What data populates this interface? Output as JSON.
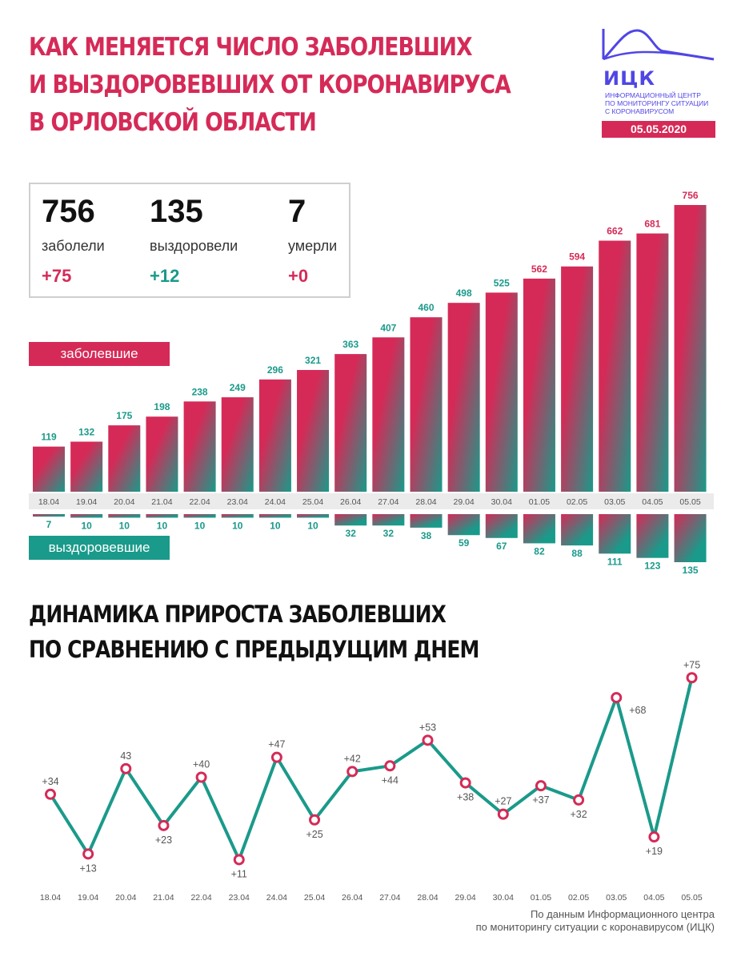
{
  "header": {
    "title_lines": [
      "КАК МЕНЯЕТСЯ ЧИСЛО ЗАБОЛЕВШИХ",
      "И ВЫЗДОРОВЕВШИХ ОТ КОРОНАВИРУСА",
      "В ОРЛОВСКОЙ ОБЛАСТИ"
    ]
  },
  "logo": {
    "abbr": "ИЦК",
    "text_lines": [
      "ИНФОРМАЦИОННЫЙ ЦЕНТР",
      "ПО МОНИТОРИНГУ СИТУАЦИИ",
      "С КОРОНАВИРУСОМ"
    ],
    "date": "05.05.2020"
  },
  "stats": [
    {
      "value": "756",
      "label": "заболели",
      "delta": "+75",
      "color": "#d52a57"
    },
    {
      "value": "135",
      "label": "выздоровели",
      "delta": "+12",
      "color": "#1a9a8a"
    },
    {
      "value": "7",
      "label": "умерли",
      "delta": "+0",
      "color": "#d52a57"
    }
  ],
  "legend": {
    "sick": "заболевшие",
    "recovered": "выздоровевшие"
  },
  "subtitle_lines": [
    "ДИНАМИКА ПРИРОСТА ЗАБОЛЕВШИХ",
    "ПО СРАВНЕНИЮ С ПРЕДЫДУЩИМ ДНЕМ"
  ],
  "footnote_lines": [
    "По данным Информационного центра",
    "по мониторингу ситуации с коронавирусом (ИЦК)"
  ],
  "colors": {
    "pink": "#d52a57",
    "teal": "#1a9a8a",
    "brand": "#5046e5"
  },
  "chart_data": [
    {
      "type": "bar",
      "title": "заболевшие / выздоровевшие",
      "categories": [
        "18.04",
        "19.04",
        "20.04",
        "21.04",
        "22.04",
        "23.04",
        "24.04",
        "25.04",
        "26.04",
        "27.04",
        "28.04",
        "29.04",
        "30.04",
        "01.05",
        "02.05",
        "03.05",
        "04.05",
        "05.05"
      ],
      "series": [
        {
          "name": "заболевшие",
          "values": [
            119,
            132,
            175,
            198,
            238,
            249,
            296,
            321,
            363,
            407,
            460,
            498,
            525,
            562,
            594,
            662,
            681,
            756
          ]
        },
        {
          "name": "выздоровевшие",
          "values": [
            7,
            10,
            10,
            10,
            10,
            10,
            10,
            10,
            32,
            32,
            38,
            59,
            67,
            82,
            88,
            111,
            123,
            135
          ]
        }
      ]
    },
    {
      "type": "line",
      "title": "ДИНАМИКА ПРИРОСТА ЗАБОЛЕВШИХ ПО СРАВНЕНИЮ С ПРЕДЫДУЩИМ ДНЕМ",
      "categories": [
        "18.04",
        "19.04",
        "20.04",
        "21.04",
        "22.04",
        "23.04",
        "24.04",
        "25.04",
        "26.04",
        "27.04",
        "28.04",
        "29.04",
        "30.04",
        "01.05",
        "02.05",
        "03.05",
        "04.05",
        "05.05"
      ],
      "values": [
        34,
        13,
        43,
        23,
        40,
        11,
        47,
        25,
        42,
        44,
        53,
        38,
        27,
        37,
        32,
        68,
        19,
        75
      ],
      "labels": [
        "+34",
        "+13",
        "43",
        "+23",
        "+40",
        "+11",
        "+47",
        "+25",
        "+42",
        "+44",
        "+53",
        "+38",
        "+27",
        "+37",
        "+32",
        "+68",
        "+19",
        "+75"
      ],
      "label_positions": [
        "above",
        "below",
        "above",
        "below",
        "above",
        "below",
        "above",
        "below",
        "above",
        "below",
        "above",
        "below",
        "above",
        "below",
        "below",
        "right",
        "below",
        "above"
      ]
    }
  ]
}
